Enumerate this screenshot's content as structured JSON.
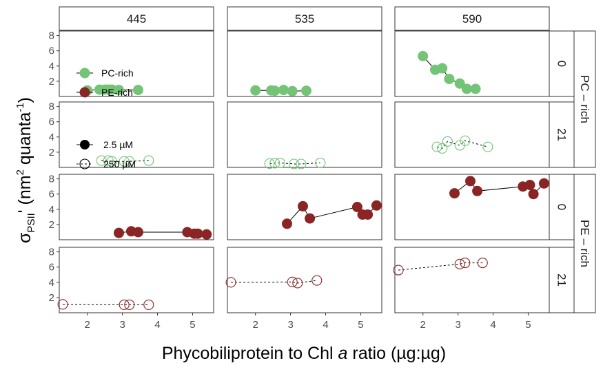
{
  "chart_data": {
    "type": "scatter",
    "layout": "facet_grid",
    "xlabel": {
      "pre": "Phycobiliprotein to Chl ",
      "italic": "a",
      "post": " ratio (µg:µg)"
    },
    "ylabel": {
      "sigma": "σ",
      "sub": "PSII",
      "prime": "' (nm",
      "sup2": "2",
      "mid": " quanta",
      "supneg": "-1",
      "close": ")"
    },
    "xlim": [
      1.2,
      5.6
    ],
    "ylim": [
      0,
      8.6
    ],
    "x_ticks": [
      2,
      3,
      4,
      5
    ],
    "y_ticks": [
      2,
      4,
      6,
      8
    ],
    "columns": [
      "445",
      "535",
      "590"
    ],
    "row_strips": [
      "PC – rich",
      "PE – rich"
    ],
    "rows": [
      "0",
      "21",
      "0",
      "21"
    ],
    "legend": {
      "culture": [
        {
          "label": "PC-rich",
          "color": "#73C476"
        },
        {
          "label": "PE-rich",
          "color": "#8B2525"
        }
      ],
      "light": [
        {
          "label": "2.5 µM",
          "filled": true
        },
        {
          "label": "250 µM",
          "filled": false
        }
      ]
    },
    "panels": [
      {
        "row": 0,
        "col": 0,
        "color": "#73C476",
        "filled": true,
        "dashed": false,
        "points": [
          [
            2.0,
            0.8
          ],
          [
            2.35,
            0.9
          ],
          [
            2.5,
            0.9
          ],
          [
            2.6,
            0.9
          ],
          [
            2.7,
            0.9
          ],
          [
            2.9,
            0.85
          ],
          [
            3.45,
            0.85
          ]
        ]
      },
      {
        "row": 0,
        "col": 1,
        "color": "#73C476",
        "filled": true,
        "dashed": false,
        "points": [
          [
            2.0,
            0.8
          ],
          [
            2.45,
            0.8
          ],
          [
            2.55,
            0.75
          ],
          [
            2.8,
            0.85
          ],
          [
            3.05,
            0.7
          ],
          [
            3.45,
            0.75
          ]
        ]
      },
      {
        "row": 0,
        "col": 2,
        "color": "#73C476",
        "filled": true,
        "dashed": false,
        "points": [
          [
            2.0,
            5.3
          ],
          [
            2.35,
            3.5
          ],
          [
            2.55,
            3.7
          ],
          [
            2.75,
            2.3
          ],
          [
            3.05,
            1.7
          ],
          [
            3.25,
            1.0
          ],
          [
            3.5,
            1.0
          ]
        ]
      },
      {
        "row": 1,
        "col": 0,
        "color": "#73C476",
        "filled": false,
        "dashed": true,
        "points": [
          [
            2.4,
            0.9
          ],
          [
            2.6,
            0.9
          ],
          [
            2.7,
            0.8
          ],
          [
            3.05,
            0.8
          ],
          [
            3.2,
            0.8
          ],
          [
            3.75,
            0.9
          ]
        ]
      },
      {
        "row": 1,
        "col": 1,
        "color": "#73C476",
        "filled": false,
        "dashed": true,
        "points": [
          [
            2.4,
            0.5
          ],
          [
            2.55,
            0.55
          ],
          [
            2.7,
            0.6
          ],
          [
            3.1,
            0.45
          ],
          [
            3.3,
            0.45
          ],
          [
            3.85,
            0.6
          ]
        ]
      },
      {
        "row": 1,
        "col": 2,
        "color": "#73C476",
        "filled": false,
        "dashed": true,
        "points": [
          [
            2.4,
            2.7
          ],
          [
            2.55,
            2.5
          ],
          [
            2.7,
            3.4
          ],
          [
            3.05,
            2.9
          ],
          [
            3.2,
            3.5
          ],
          [
            3.85,
            2.7
          ]
        ]
      },
      {
        "row": 2,
        "col": 0,
        "color": "#8B2525",
        "filled": true,
        "dashed": false,
        "points": [
          [
            2.9,
            0.9
          ],
          [
            3.25,
            1.1
          ],
          [
            3.45,
            1.0
          ],
          [
            4.85,
            1.0
          ],
          [
            5.05,
            0.8
          ],
          [
            5.15,
            0.8
          ],
          [
            5.4,
            0.7
          ]
        ]
      },
      {
        "row": 2,
        "col": 1,
        "color": "#8B2525",
        "filled": true,
        "dashed": false,
        "points": [
          [
            2.9,
            2.1
          ],
          [
            3.35,
            4.4
          ],
          [
            3.55,
            2.8
          ],
          [
            4.9,
            4.3
          ],
          [
            5.05,
            3.3
          ],
          [
            5.2,
            3.3
          ],
          [
            5.45,
            4.5
          ]
        ]
      },
      {
        "row": 2,
        "col": 2,
        "color": "#8B2525",
        "filled": true,
        "dashed": false,
        "points": [
          [
            2.9,
            6.1
          ],
          [
            3.35,
            7.7
          ],
          [
            3.55,
            6.4
          ],
          [
            4.85,
            7.0
          ],
          [
            5.05,
            7.2
          ],
          [
            5.15,
            6.0
          ],
          [
            5.45,
            7.4
          ]
        ]
      },
      {
        "row": 3,
        "col": 0,
        "color": "#8B2525",
        "filled": false,
        "dashed": true,
        "points": [
          [
            1.3,
            1.1
          ],
          [
            3.05,
            1.05
          ],
          [
            3.2,
            1.05
          ],
          [
            3.75,
            1.05
          ]
        ]
      },
      {
        "row": 3,
        "col": 1,
        "color": "#8B2525",
        "filled": false,
        "dashed": true,
        "points": [
          [
            1.3,
            4.0
          ],
          [
            3.05,
            4.05
          ],
          [
            3.2,
            3.9
          ],
          [
            3.75,
            4.25
          ]
        ]
      },
      {
        "row": 3,
        "col": 2,
        "color": "#8B2525",
        "filled": false,
        "dashed": true,
        "points": [
          [
            1.3,
            5.6
          ],
          [
            3.05,
            6.4
          ],
          [
            3.2,
            6.55
          ],
          [
            3.7,
            6.55
          ]
        ]
      }
    ]
  }
}
